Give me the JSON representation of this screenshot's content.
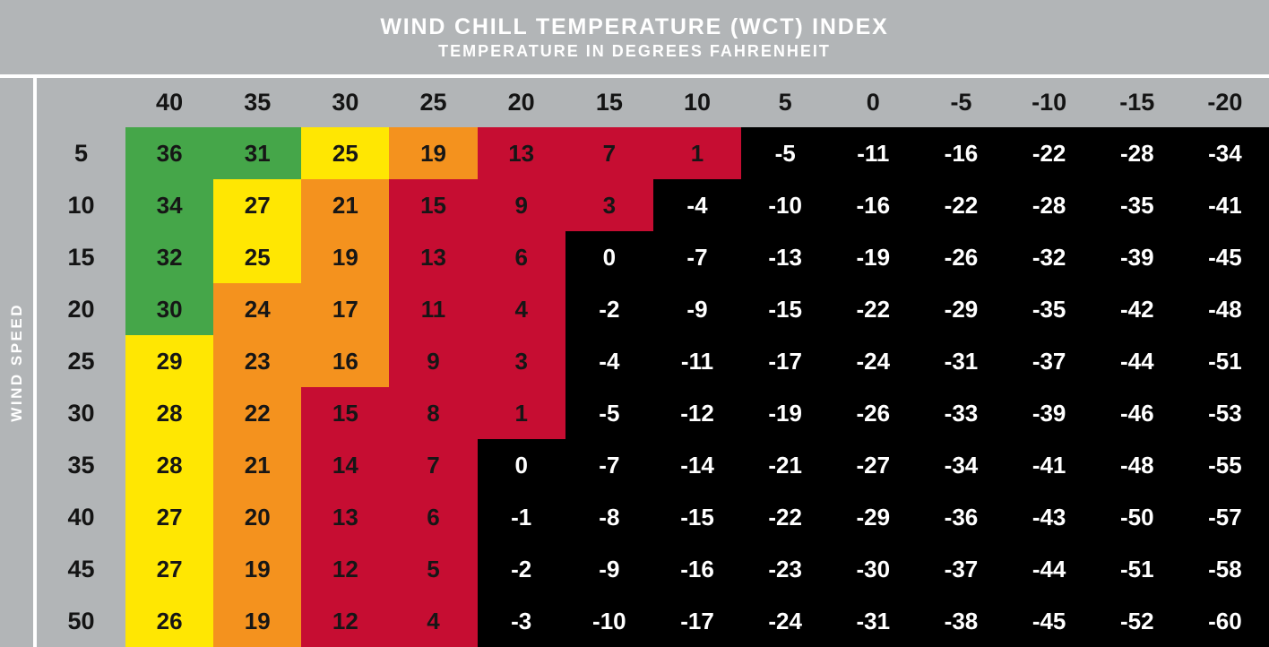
{
  "header": {
    "title": "WIND CHILL TEMPERATURE (WCT) INDEX",
    "subtitle": "TEMPERATURE IN DEGREES FAHRENHEIT"
  },
  "axis": {
    "y_label": "WIND SPEED"
  },
  "chart_data": {
    "type": "heatmap",
    "title": "WIND CHILL TEMPERATURE (WCT) INDEX",
    "subtitle": "TEMPERATURE IN DEGREES FAHRENHEIT",
    "xlabel": "TEMPERATURE IN DEGREES FAHRENHEIT",
    "ylabel": "WIND SPEED",
    "columns": [
      40,
      35,
      30,
      25,
      20,
      15,
      10,
      5,
      0,
      -5,
      -10,
      -15,
      -20
    ],
    "rows": [
      5,
      10,
      15,
      20,
      25,
      30,
      35,
      40,
      45,
      50
    ],
    "values": [
      [
        36,
        31,
        25,
        19,
        13,
        7,
        1,
        -5,
        -11,
        -16,
        -22,
        -28,
        -34
      ],
      [
        34,
        27,
        21,
        15,
        9,
        3,
        -4,
        -10,
        -16,
        -22,
        -28,
        -35,
        -41
      ],
      [
        32,
        25,
        19,
        13,
        6,
        0,
        -7,
        -13,
        -19,
        -26,
        -32,
        -39,
        -45
      ],
      [
        30,
        24,
        17,
        11,
        4,
        -2,
        -9,
        -15,
        -22,
        -29,
        -35,
        -42,
        -48
      ],
      [
        29,
        23,
        16,
        9,
        3,
        -4,
        -11,
        -17,
        -24,
        -31,
        -37,
        -44,
        -51
      ],
      [
        28,
        22,
        15,
        8,
        1,
        -5,
        -12,
        -19,
        -26,
        -33,
        -39,
        -46,
        -53
      ],
      [
        28,
        21,
        14,
        7,
        0,
        -7,
        -14,
        -21,
        -27,
        -34,
        -41,
        -48,
        -55
      ],
      [
        27,
        20,
        13,
        6,
        -1,
        -8,
        -15,
        -22,
        -29,
        -36,
        -43,
        -50,
        -57
      ],
      [
        27,
        19,
        12,
        5,
        -2,
        -9,
        -16,
        -23,
        -30,
        -37,
        -44,
        -51,
        -58
      ],
      [
        26,
        19,
        12,
        4,
        -3,
        -10,
        -17,
        -24,
        -31,
        -38,
        -45,
        -52,
        -60
      ]
    ],
    "cell_colors": [
      "ggyorrrkkkkkk",
      "gyorrrkkkkkkk",
      "gyorrkkkkkkkk",
      "goorrkkkkkkkk",
      "yoorrkkkkkkkk",
      "yorrrkkkkkkkk",
      "yorrkkkkkkkkk",
      "yorrkkkkkkkkk",
      "yorrkkkkkkkkk",
      "yorrkkkkkkkkk"
    ],
    "palette": {
      "green": "#45A649",
      "yellow": "#FFE702",
      "orange": "#F4921E",
      "red": "#C60D32",
      "black": "#000000"
    },
    "layout": {
      "background_gray": "#B2B5B7",
      "divider_white": "#FFFFFF",
      "grid": "off",
      "legend": "none"
    }
  }
}
